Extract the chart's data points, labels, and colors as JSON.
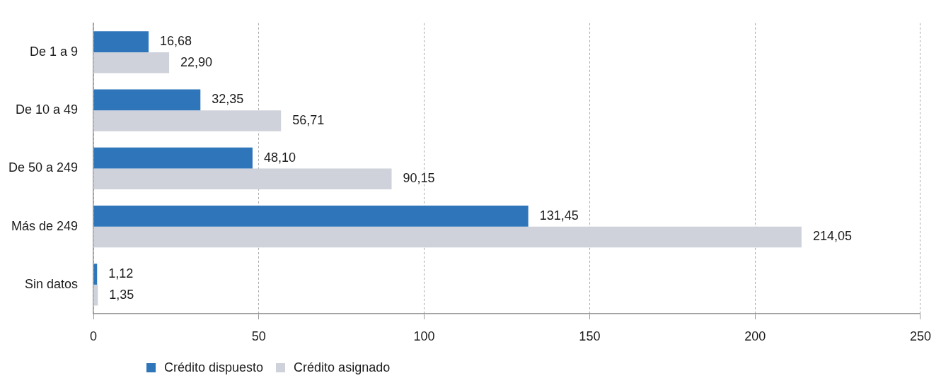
{
  "chart_data": {
    "type": "bar",
    "orientation": "horizontal",
    "categories": [
      "De 1 a 9",
      "De 10 a 49",
      "De 50 a 249",
      "Más de 249",
      "Sin datos"
    ],
    "series": [
      {
        "name": "Crédito dispuesto",
        "color": "#2e75b9",
        "values": [
          16.68,
          32.35,
          48.1,
          131.45,
          1.12
        ],
        "value_labels": [
          "16,68",
          "32,35",
          "48,10",
          "131,45",
          "1,12"
        ]
      },
      {
        "name": "Crédito asignado",
        "color": "#cfd2da",
        "values": [
          22.9,
          56.71,
          90.15,
          214.05,
          1.35
        ],
        "value_labels": [
          "22,90",
          "56,71",
          "90,15",
          "214,05",
          "1,35"
        ]
      }
    ],
    "xlim": [
      0,
      250
    ],
    "xticks": [
      0,
      50,
      100,
      150,
      200,
      250
    ],
    "grid": "x",
    "legend": "bottom"
  }
}
